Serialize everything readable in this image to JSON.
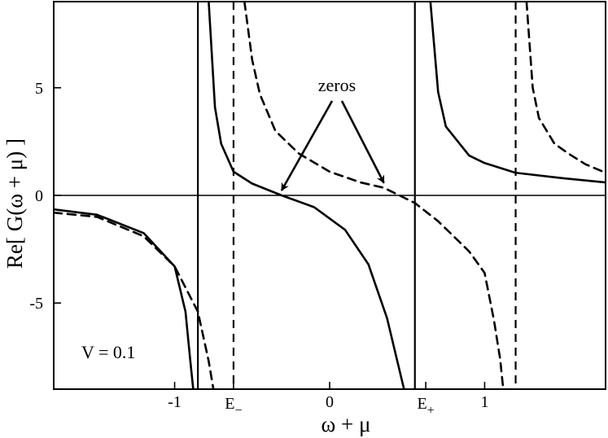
{
  "chart_data": {
    "type": "line",
    "xlabel": "ω + μ",
    "ylabel": "Re[ G(ω + μ) ]",
    "xlim": [
      -1.78,
      1.78
    ],
    "ylim": [
      -9,
      9
    ],
    "grid": false,
    "x_ticks": [
      {
        "value": -1,
        "label": "-1"
      },
      {
        "value": 0,
        "label": "0"
      },
      {
        "value": 1,
        "label": "1"
      }
    ],
    "x_special_ticks": [
      {
        "value": -0.62,
        "base": "E",
        "sub": "−"
      },
      {
        "value": 0.62,
        "base": "E",
        "sub": "+"
      }
    ],
    "y_ticks": [
      {
        "value": -5,
        "label": "-5"
      },
      {
        "value": 0,
        "label": "0"
      },
      {
        "value": 5,
        "label": "5"
      }
    ],
    "params": {
      "text": "V = 0.1"
    },
    "annotation": {
      "text": "zeros",
      "targets": [
        [
          -0.31,
          0.0
        ],
        [
          0.35,
          0.35
        ]
      ]
    },
    "series": [
      {
        "style": "solid",
        "poles": [
          -0.85,
          0.55
        ],
        "asymptotes": [
          -0.85,
          0.55
        ],
        "points": [
          [
            -1.78,
            -0.65
          ],
          [
            -1.5,
            -0.9
          ],
          [
            -1.2,
            -1.75
          ],
          [
            -1.0,
            -3.3
          ],
          [
            -0.93,
            -5.4
          ],
          [
            -0.9,
            -7.6
          ],
          [
            -0.88,
            -9
          ],
          [
            -0.78,
            9
          ],
          [
            -0.74,
            4.1
          ],
          [
            -0.7,
            2.4
          ],
          [
            -0.62,
            1.1
          ],
          [
            -0.5,
            0.55
          ],
          [
            -0.31,
            0.0
          ],
          [
            -0.1,
            -0.55
          ],
          [
            0.1,
            -1.6
          ],
          [
            0.25,
            -3.2
          ],
          [
            0.37,
            -5.7
          ],
          [
            0.44,
            -7.8
          ],
          [
            0.48,
            -9
          ],
          [
            0.65,
            9
          ],
          [
            0.7,
            4.8
          ],
          [
            0.75,
            3.2
          ],
          [
            0.9,
            1.85
          ],
          [
            1.0,
            1.5
          ],
          [
            1.2,
            1.05
          ],
          [
            1.5,
            0.8
          ],
          [
            1.78,
            0.6
          ]
        ]
      },
      {
        "style": "dashed",
        "poles": [
          -0.62,
          1.2
        ],
        "asymptotes": [
          -0.62,
          1.2
        ],
        "points": [
          [
            -1.78,
            -0.8
          ],
          [
            -1.5,
            -1.0
          ],
          [
            -1.2,
            -1.9
          ],
          [
            -1.0,
            -3.3
          ],
          [
            -0.85,
            -5.4
          ],
          [
            -0.78,
            -7.7
          ],
          [
            -0.75,
            -9
          ],
          [
            -0.55,
            9
          ],
          [
            -0.5,
            6.3
          ],
          [
            -0.45,
            4.7
          ],
          [
            -0.35,
            3.0
          ],
          [
            -0.2,
            1.95
          ],
          [
            0.0,
            1.1
          ],
          [
            0.2,
            0.6
          ],
          [
            0.35,
            0.35
          ],
          [
            0.45,
            0.0
          ],
          [
            0.55,
            -0.35
          ],
          [
            0.7,
            -1.2
          ],
          [
            0.9,
            -2.6
          ],
          [
            1.0,
            -3.6
          ],
          [
            1.06,
            -5.8
          ],
          [
            1.1,
            -7.6
          ],
          [
            1.12,
            -9
          ],
          [
            1.27,
            9
          ],
          [
            1.31,
            5.0
          ],
          [
            1.35,
            3.6
          ],
          [
            1.45,
            2.4
          ],
          [
            1.55,
            1.9
          ],
          [
            1.65,
            1.45
          ],
          [
            1.78,
            1.05
          ]
        ]
      }
    ]
  }
}
